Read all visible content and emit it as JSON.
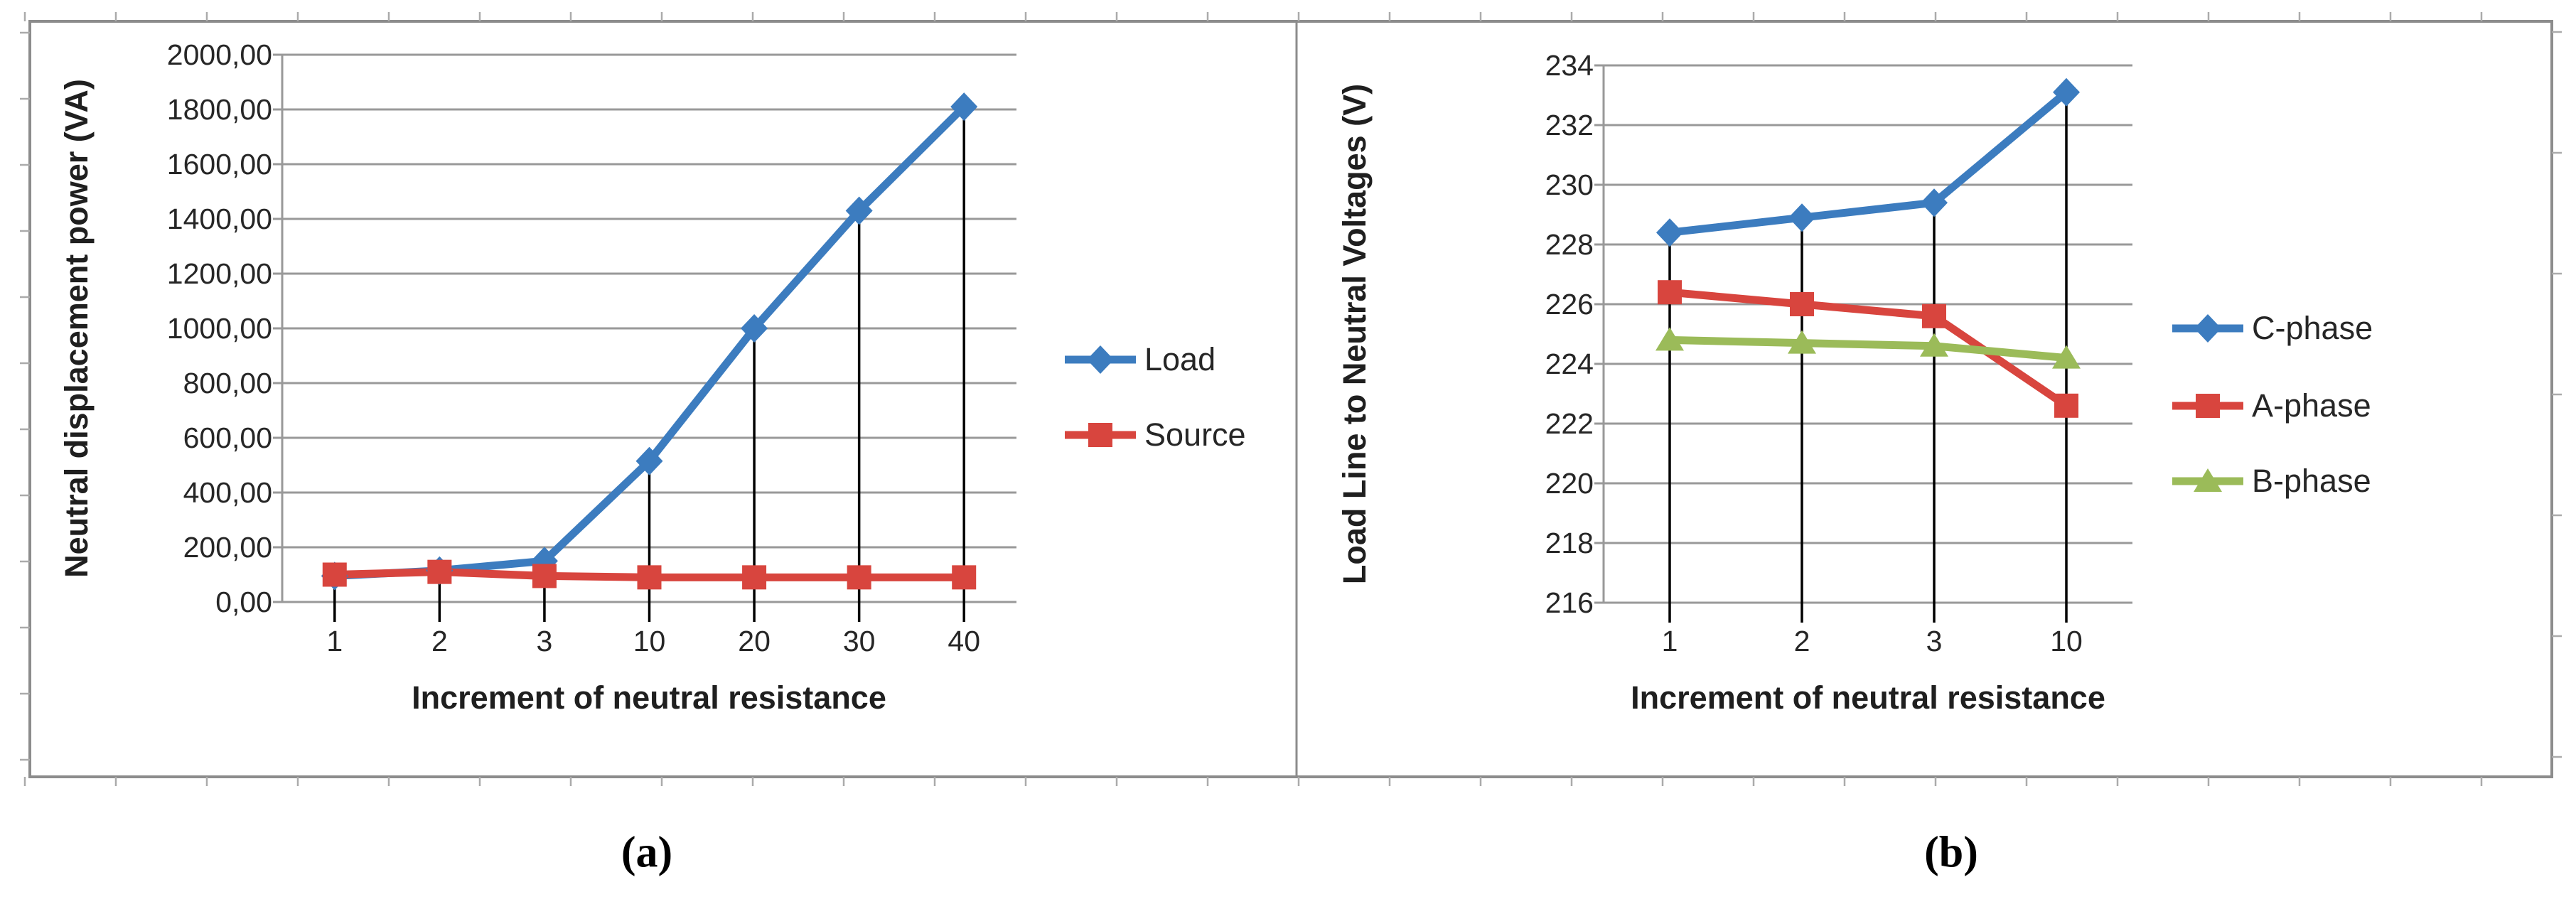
{
  "figure": {
    "caption_a": "(a)",
    "caption_b": "(b)"
  },
  "colors": {
    "blue": "#3c7cbf",
    "red": "#d8453e",
    "green": "#9bbb59",
    "gridline": "#999999",
    "frame": "#8c8c8c",
    "worksheet_tick": "#ababab",
    "drop_line": "#000000",
    "text": "#262626"
  },
  "chart_data": [
    {
      "id": "a",
      "type": "line",
      "title": "",
      "xlabel": "Increment of neutral resistance",
      "ylabel": "Neutral displacement power (VA)",
      "categories": [
        "1",
        "2",
        "3",
        "10",
        "20",
        "30",
        "40"
      ],
      "series": [
        {
          "name": "Load",
          "color_key": "blue",
          "marker": "diamond",
          "values": [
            95,
            115,
            150,
            515,
            1000,
            1430,
            1810
          ]
        },
        {
          "name": "Source",
          "color_key": "red",
          "marker": "square",
          "values": [
            100,
            110,
            95,
            90,
            90,
            90,
            90
          ]
        }
      ],
      "ylim": [
        0,
        2000
      ],
      "ytick_step": 200,
      "ytick_labels": [
        "0,00",
        "200,00",
        "400,00",
        "600,00",
        "800,00",
        "1000,00",
        "1200,00",
        "1400,00",
        "1600,00",
        "1800,00",
        "2000,00"
      ],
      "grid": true,
      "drop_lines": true,
      "legend_position": "right",
      "legend_entries": [
        "Load",
        "Source"
      ]
    },
    {
      "id": "b",
      "type": "line",
      "title": "",
      "xlabel": "Increment of neutral resistance",
      "ylabel": "Load Line to Neutral Voltages (V)",
      "categories": [
        "1",
        "2",
        "3",
        "10"
      ],
      "series": [
        {
          "name": "C-phase",
          "color_key": "blue",
          "marker": "diamond",
          "values": [
            228.4,
            228.9,
            229.4,
            233.1
          ]
        },
        {
          "name": "A-phase",
          "color_key": "red",
          "marker": "square",
          "values": [
            226.4,
            226.0,
            225.6,
            222.6
          ]
        },
        {
          "name": "B-phase",
          "color_key": "green",
          "marker": "triangle",
          "values": [
            224.8,
            224.7,
            224.6,
            224.2
          ]
        }
      ],
      "ylim": [
        216,
        234
      ],
      "ytick_step": 2,
      "ytick_labels": [
        "216",
        "218",
        "220",
        "222",
        "224",
        "226",
        "228",
        "230",
        "232",
        "234"
      ],
      "grid": true,
      "drop_lines": true,
      "legend_position": "right",
      "legend_entries": [
        "C-phase",
        "A-phase",
        "B-phase"
      ]
    }
  ]
}
